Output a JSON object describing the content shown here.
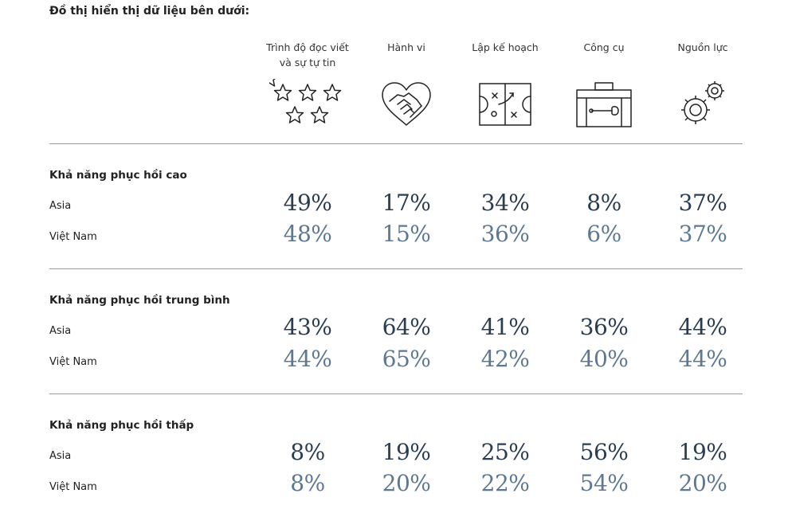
{
  "page": {
    "title": "Đồ thị hiển thị dữ liệu bên dưới:"
  },
  "columns": [
    {
      "label": "Trình độ đọc viết và sự tự tin",
      "icon": "stars-icon"
    },
    {
      "label": "Hành vi",
      "icon": "handshake-heart-icon"
    },
    {
      "label": "Lập kế hoạch",
      "icon": "playbook-icon"
    },
    {
      "label": "Công cụ",
      "icon": "toolbox-icon"
    },
    {
      "label": "Nguồn lực",
      "icon": "gears-icon"
    }
  ],
  "groups": [
    {
      "title": "Khả năng phục hồi cao",
      "rows": [
        {
          "label": "Asia",
          "values": [
            "49%",
            "17%",
            "34%",
            "8%",
            "37%"
          ]
        },
        {
          "label": "Việt Nam",
          "values": [
            "48%",
            "15%",
            "36%",
            "6%",
            "37%"
          ]
        }
      ]
    },
    {
      "title": "Khả năng phục hồi trung bình",
      "rows": [
        {
          "label": "Asia",
          "values": [
            "43%",
            "64%",
            "41%",
            "36%",
            "44%"
          ]
        },
        {
          "label": "Việt Nam",
          "values": [
            "44%",
            "65%",
            "42%",
            "40%",
            "44%"
          ]
        }
      ]
    },
    {
      "title": "Khả năng phục hồi thấp",
      "rows": [
        {
          "label": "Asia",
          "values": [
            "8%",
            "19%",
            "25%",
            "56%",
            "19%"
          ]
        },
        {
          "label": "Việt Nam",
          "values": [
            "8%",
            "20%",
            "22%",
            "54%",
            "20%"
          ]
        }
      ]
    }
  ],
  "colors": {
    "asia": "#2a3d52",
    "vietnam": "#5d7892",
    "divider": "#9a9a9a"
  },
  "chart_data": {
    "type": "table",
    "title": "Đồ thị hiển thị dữ liệu bên dưới:",
    "categories": [
      "Trình độ đọc viết và sự tự tin",
      "Hành vi",
      "Lập kế hoạch",
      "Công cụ",
      "Nguồn lực"
    ],
    "groups": [
      {
        "name": "Khả năng phục hồi cao",
        "series": [
          {
            "name": "Asia",
            "values": [
              49,
              17,
              34,
              8,
              37
            ]
          },
          {
            "name": "Việt Nam",
            "values": [
              48,
              15,
              36,
              6,
              37
            ]
          }
        ]
      },
      {
        "name": "Khả năng phục hồi trung bình",
        "series": [
          {
            "name": "Asia",
            "values": [
              43,
              64,
              41,
              36,
              44
            ]
          },
          {
            "name": "Việt Nam",
            "values": [
              44,
              65,
              42,
              40,
              44
            ]
          }
        ]
      },
      {
        "name": "Khả năng phục hồi thấp",
        "series": [
          {
            "name": "Asia",
            "values": [
              8,
              19,
              25,
              56,
              19
            ]
          },
          {
            "name": "Việt Nam",
            "values": [
              8,
              20,
              22,
              54,
              20
            ]
          }
        ]
      }
    ]
  }
}
